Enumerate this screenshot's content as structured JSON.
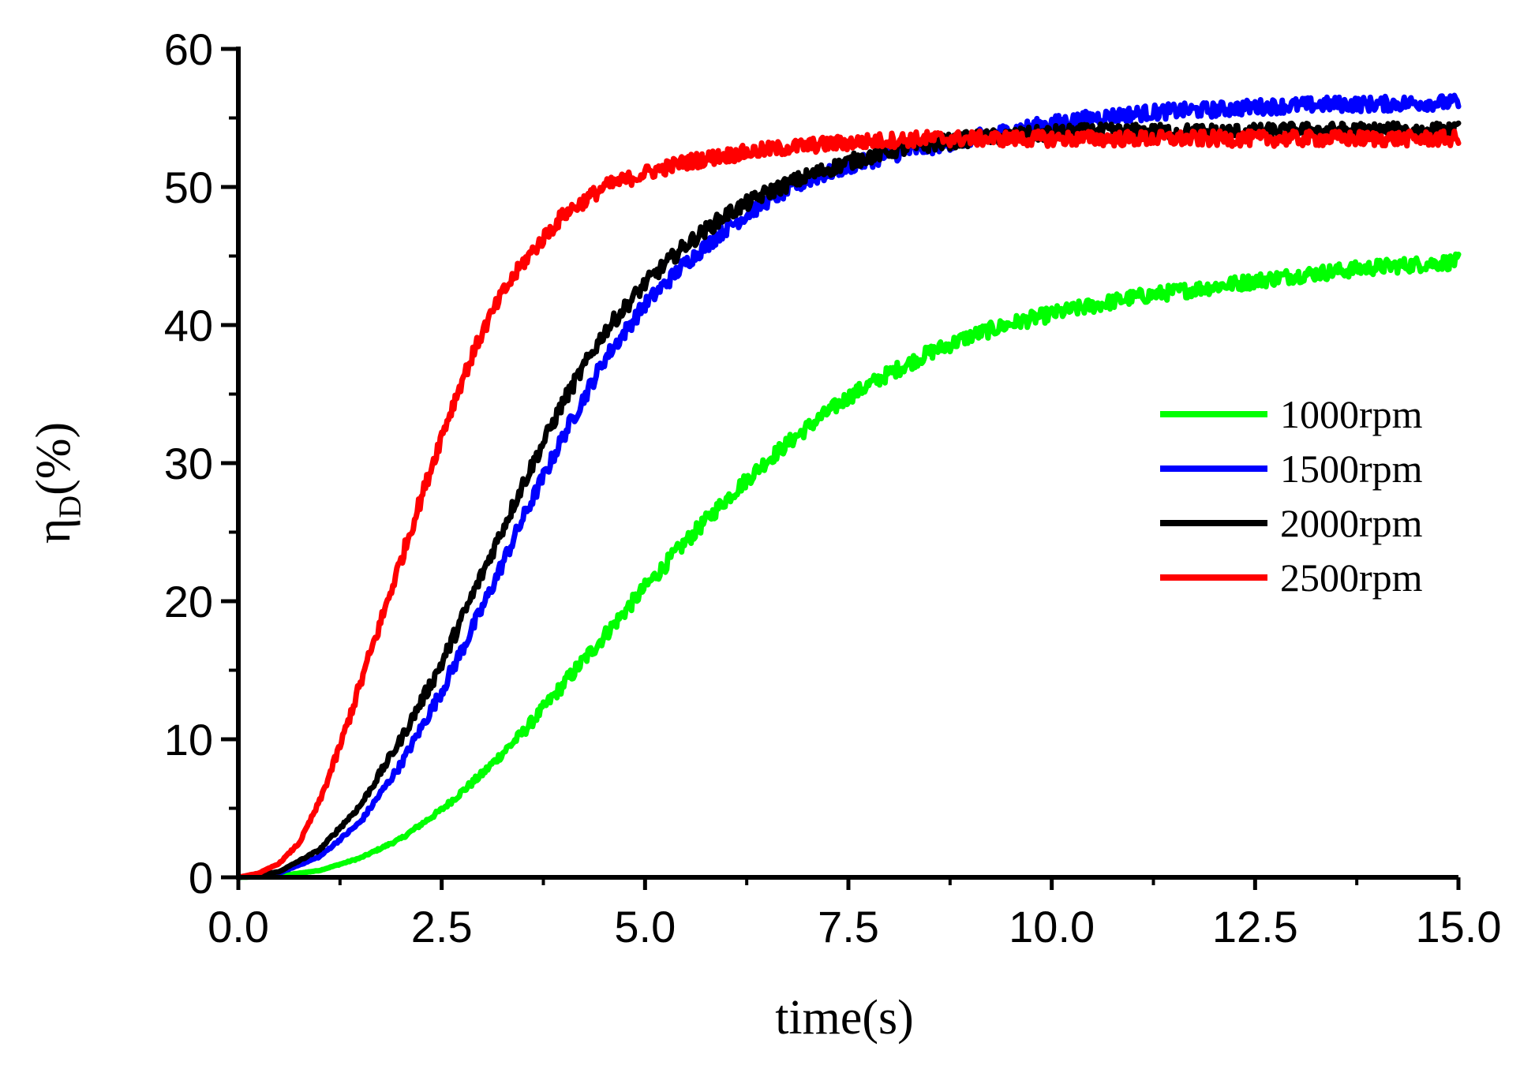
{
  "chart_data": {
    "type": "line",
    "title": "",
    "xlabel": "time(s)",
    "ylabel_symbol": "η",
    "ylabel_subscript": "D",
    "ylabel_suffix": "(%)",
    "xlim": [
      0,
      15
    ],
    "ylim": [
      0,
      60
    ],
    "x_ticks": [
      0,
      2.5,
      5,
      7.5,
      10,
      12.5,
      15
    ],
    "x_tick_labels": [
      "0.0",
      "2.5",
      "5.0",
      "7.5",
      "10.0",
      "12.5",
      "15.0"
    ],
    "y_ticks": [
      0,
      10,
      20,
      30,
      40,
      50,
      60
    ],
    "y_tick_labels": [
      "0",
      "10",
      "20",
      "30",
      "40",
      "50",
      "60"
    ],
    "x_minor_step": 1.25,
    "y_minor_step": 5,
    "grid": false,
    "legend_position": "right",
    "series": [
      {
        "name": "1000rpm",
        "color": "#00ff00",
        "x": [
          0,
          0.5,
          1.0,
          1.5,
          2.0,
          2.5,
          3.0,
          3.5,
          4.0,
          4.5,
          5.0,
          5.5,
          6.0,
          6.5,
          7.0,
          7.5,
          8.0,
          8.5,
          9.0,
          9.5,
          10.0,
          10.5,
          11.0,
          11.5,
          12.0,
          12.5,
          13.0,
          13.5,
          14.0,
          14.5,
          15.0
        ],
        "values": [
          0,
          0.1,
          0.5,
          1.4,
          2.8,
          4.9,
          7.5,
          10.5,
          14.0,
          17.5,
          21.0,
          24.3,
          27.4,
          30.2,
          32.6,
          34.8,
          36.5,
          38.0,
          39.2,
          40.1,
          40.8,
          41.4,
          42.0,
          42.4,
          42.8,
          43.2,
          43.6,
          43.9,
          44.2,
          44.4,
          44.6
        ]
      },
      {
        "name": "1500rpm",
        "color": "#0000ff",
        "x": [
          0,
          0.5,
          1.0,
          1.5,
          2.0,
          2.5,
          3.0,
          3.5,
          4.0,
          4.5,
          5.0,
          5.5,
          6.0,
          6.5,
          7.0,
          7.5,
          8.0,
          8.5,
          9.0,
          9.5,
          10.0,
          10.5,
          11.0,
          11.5,
          12.0,
          12.5,
          13.0,
          13.5,
          14.0,
          14.5,
          15.0
        ],
        "values": [
          0,
          0.3,
          1.5,
          4.0,
          8.2,
          13.5,
          19.5,
          26.0,
          32.0,
          37.5,
          41.5,
          44.5,
          47.0,
          49.0,
          50.5,
          51.5,
          52.3,
          52.9,
          53.5,
          54.1,
          54.6,
          55.0,
          55.3,
          55.5,
          55.6,
          55.8,
          55.9,
          56.0,
          56.0,
          56.1,
          56.1
        ]
      },
      {
        "name": "2000rpm",
        "color": "#000000",
        "x": [
          0,
          0.5,
          1.0,
          1.5,
          2.0,
          2.5,
          3.0,
          3.5,
          4.0,
          4.5,
          5.0,
          5.5,
          6.0,
          6.5,
          7.0,
          7.5,
          8.0,
          8.5,
          9.0,
          9.5,
          10.0,
          10.5,
          11.0,
          11.5,
          12.0,
          12.5,
          13.0,
          13.5,
          14.0,
          14.5,
          15.0
        ],
        "values": [
          0,
          0.4,
          2.0,
          5.2,
          10.0,
          15.5,
          22.0,
          28.5,
          34.5,
          39.5,
          43.0,
          45.8,
          48.0,
          49.6,
          50.8,
          51.8,
          52.6,
          53.1,
          53.5,
          53.7,
          53.9,
          54.0,
          54.0,
          54.0,
          54.0,
          54.0,
          54.1,
          54.1,
          54.1,
          54.1,
          54.1
        ]
      },
      {
        "name": "2500rpm",
        "color": "#ff0000",
        "x": [
          0,
          0.25,
          0.5,
          0.75,
          1.0,
          1.25,
          1.5,
          1.75,
          2.0,
          2.25,
          2.5,
          2.75,
          3.0,
          3.25,
          3.5,
          3.75,
          4.0,
          4.5,
          5.0,
          5.5,
          6.0,
          6.5,
          7.0,
          7.5,
          8.0,
          8.5,
          9.0,
          10.0,
          11.0,
          12.0,
          13.0,
          14.0,
          15.0
        ],
        "values": [
          0,
          0.3,
          1.0,
          2.5,
          5.5,
          9.5,
          14.0,
          18.5,
          23.0,
          27.5,
          32.0,
          36.0,
          39.5,
          42.3,
          44.5,
          46.3,
          48.0,
          50.0,
          51.0,
          51.8,
          52.3,
          52.7,
          53.0,
          53.2,
          53.4,
          53.5,
          53.5,
          53.5,
          53.5,
          53.5,
          53.5,
          53.5,
          53.5
        ]
      }
    ]
  }
}
